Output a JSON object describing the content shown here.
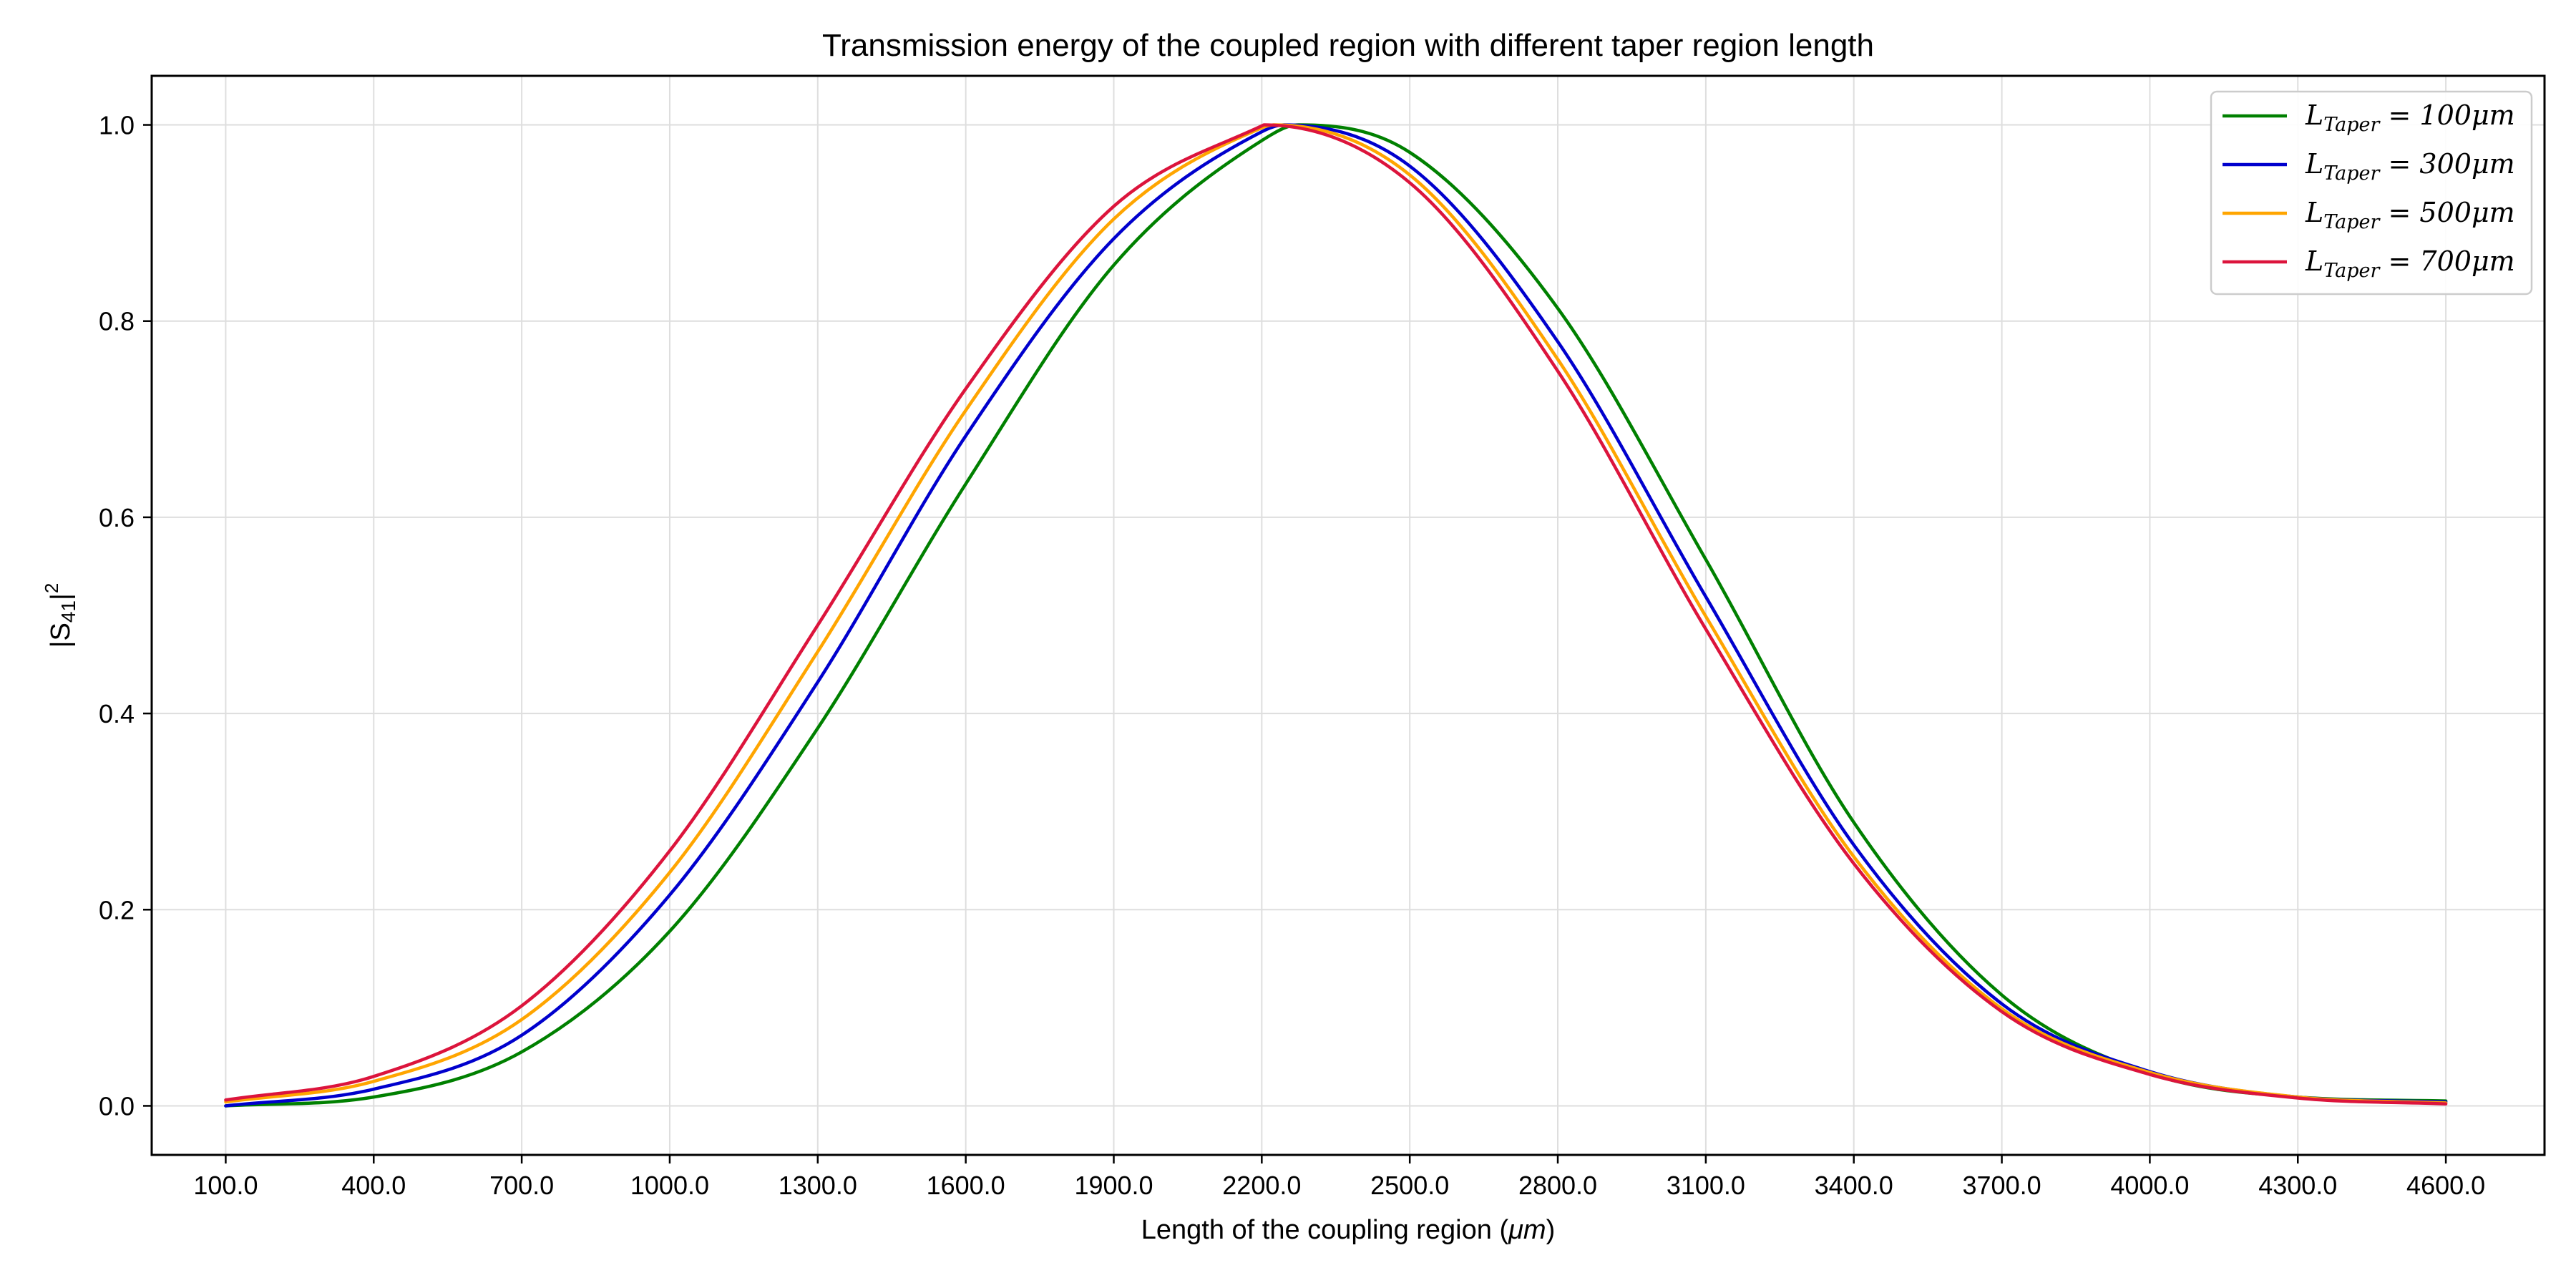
{
  "chart_data": {
    "type": "line",
    "title": "Transmission energy of the coupled region with different taper region length",
    "xlabel": "Length of the coupling region (",
    "xlabel_unit": "μm",
    "xlabel_close": ")",
    "ylabel": "|S",
    "ylabel_sub": "41",
    "ylabel_sup": "2",
    "xlim": [
      -50,
      4800
    ],
    "ylim": [
      -0.05,
      1.05
    ],
    "xticks": [
      100,
      400,
      700,
      1000,
      1300,
      1600,
      1900,
      2200,
      2500,
      2800,
      3100,
      3400,
      3700,
      4000,
      4300,
      4600
    ],
    "xtick_labels": [
      "100.0",
      "400.0",
      "700.0",
      "1000.0",
      "1300.0",
      "1600.0",
      "1900.0",
      "2200.0",
      "2500.0",
      "2800.0",
      "3100.0",
      "3400.0",
      "3700.0",
      "4000.0",
      "4300.0",
      "4600.0"
    ],
    "yticks": [
      0.0,
      0.2,
      0.4,
      0.6,
      0.8,
      1.0
    ],
    "ytick_labels": [
      "0.0",
      "0.2",
      "0.4",
      "0.6",
      "0.8",
      "1.0"
    ],
    "grid": true,
    "legend_position": "top-right",
    "x": [
      100,
      400,
      700,
      1000,
      1300,
      1600,
      1900,
      2200,
      2500,
      2800,
      3100,
      3400,
      3700,
      4000,
      4300,
      4600
    ],
    "series": [
      {
        "name_main": "L",
        "name_sub": "Taper",
        "name_rest": " = 100μm",
        "color": "#008000",
        "peak_x": 2275,
        "values": [
          0.0,
          0.009,
          0.055,
          0.178,
          0.385,
          0.634,
          0.857,
          0.984,
          0.972,
          0.813,
          0.557,
          0.289,
          0.113,
          0.033,
          0.009,
          0.005
        ]
      },
      {
        "name_main": "L",
        "name_sub": "Taper",
        "name_rest": " = 300μm",
        "color": "#0000cd",
        "peak_x": 2245,
        "values": [
          0.0,
          0.017,
          0.072,
          0.215,
          0.432,
          0.683,
          0.884,
          0.993,
          0.958,
          0.779,
          0.519,
          0.266,
          0.104,
          0.035,
          0.009,
          0.004
        ]
      },
      {
        "name_main": "L",
        "name_sub": "Taper",
        "name_rest": " = 500μm",
        "color": "#ffa500",
        "peak_x": 2225,
        "values": [
          0.004,
          0.025,
          0.088,
          0.238,
          0.463,
          0.709,
          0.904,
          0.997,
          0.949,
          0.761,
          0.499,
          0.254,
          0.099,
          0.034,
          0.009,
          0.003
        ]
      },
      {
        "name_main": "L",
        "name_sub": "Taper",
        "name_rest": " = 700μm",
        "color": "#dc143c",
        "peak_x": 2205,
        "values": [
          0.006,
          0.03,
          0.102,
          0.26,
          0.49,
          0.731,
          0.917,
          0.999,
          0.941,
          0.749,
          0.486,
          0.247,
          0.096,
          0.032,
          0.008,
          0.002
        ]
      }
    ]
  }
}
